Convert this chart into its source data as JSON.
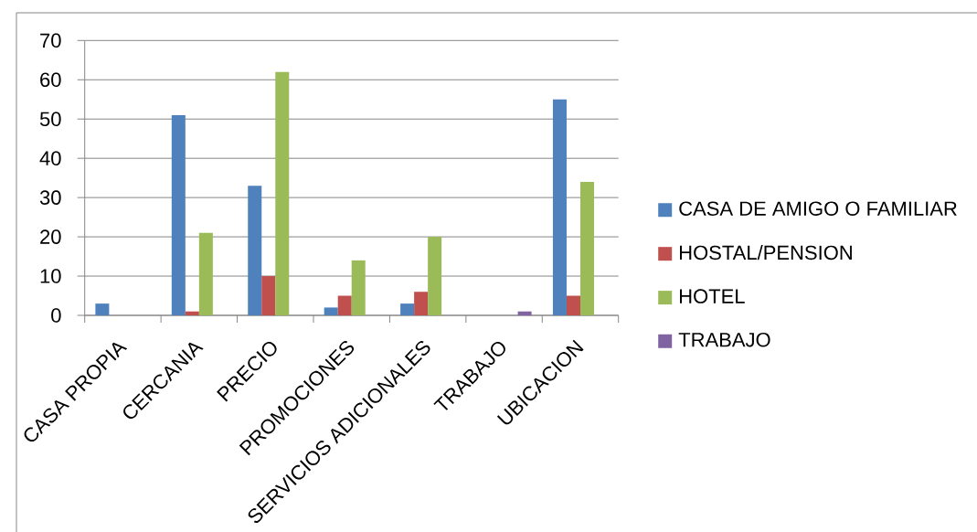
{
  "chart_data": {
    "type": "bar",
    "categories": [
      "CASA PROPIA",
      "CERCANIA",
      "PRECIO",
      "PROMOCIONES",
      "SERVICIOS ADICIONALES",
      "TRABAJO",
      "UBICACION"
    ],
    "series": [
      {
        "name": "CASA DE AMIGO O FAMILIAR",
        "color": "#4f81bd",
        "values": [
          3,
          51,
          33,
          2,
          3,
          null,
          55
        ]
      },
      {
        "name": "HOSTAL/PENSION",
        "color": "#c0504d",
        "values": [
          null,
          1,
          10,
          5,
          6,
          null,
          5
        ]
      },
      {
        "name": "HOTEL",
        "color": "#9bbb59",
        "values": [
          null,
          21,
          62,
          14,
          20,
          null,
          34
        ]
      },
      {
        "name": "TRABAJO",
        "color": "#8064a2",
        "values": [
          null,
          null,
          null,
          null,
          null,
          1,
          null
        ]
      }
    ],
    "ylim": [
      0,
      70
    ],
    "yticks": [
      0,
      10,
      20,
      30,
      40,
      50,
      60,
      70
    ],
    "grid": "y",
    "legend": "right"
  }
}
